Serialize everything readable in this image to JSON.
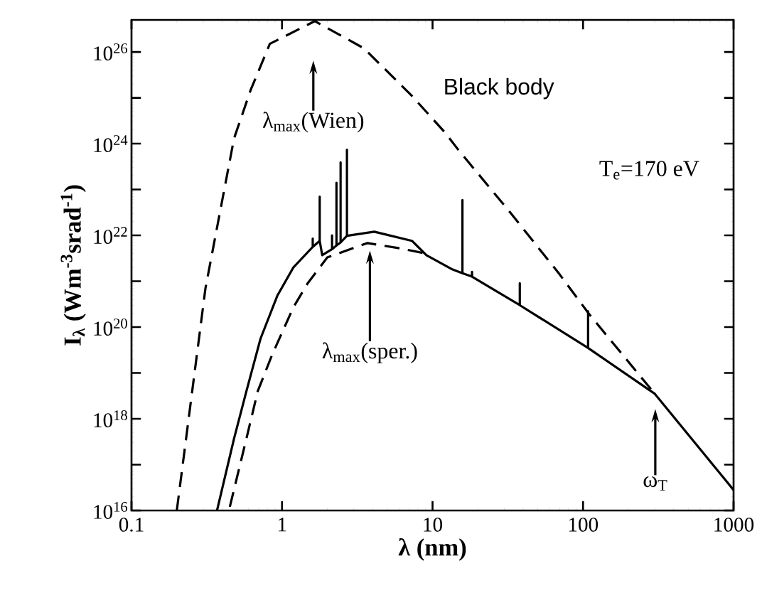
{
  "chart_data": {
    "type": "line",
    "xlabel": "λ  (nm)",
    "ylabel": "I$_{λ}$ (Wm$^{-3}$srad$^{-1}$)",
    "log": "xy",
    "grid": false,
    "marker": "none",
    "xlim": [
      0.1,
      1000
    ],
    "ylim": [
      1e+16,
      5e+26
    ],
    "xticks": [
      0.1,
      1,
      10,
      100,
      1000
    ],
    "yticks": [
      {
        "value": 1e+16,
        "label": "10$^{16}$"
      },
      {
        "value": 1e+17,
        "label": null
      },
      {
        "value": 1e+18,
        "label": "10$^{18}$"
      },
      {
        "value": 1e+19,
        "label": null
      },
      {
        "value": 1e+20,
        "label": "10$^{20}$"
      },
      {
        "value": 1e+21,
        "label": null
      },
      {
        "value": 1e+22,
        "label": "10$^{22}$"
      },
      {
        "value": 1e+23,
        "label": null
      },
      {
        "value": 1e+24,
        "label": "10$^{24}$"
      },
      {
        "value": 1e+25,
        "label": null
      },
      {
        "value": 1e+26,
        "label": "10$^{26}$"
      }
    ],
    "series": [
      {
        "color": "#000000",
        "line_style": "dashed",
        "x": [
          0.2,
          0.31,
          0.48,
          0.62,
          0.83,
          1.65,
          3.5,
          7.3,
          12,
          15,
          32,
          70,
          110,
          290
        ],
        "values": [
          1e+16,
          7e+20,
          1.3e+24,
          1.5e+25,
          1.5e+26,
          4.7e+26,
          1.2e+26,
          1.1e+25,
          1.8e+24,
          7e+23,
          3.5e+22,
          1.4e+21,
          1.9e+20,
          4e+18
        ]
      },
      {
        "color": "#000000",
        "line_style": "dashed",
        "x": [
          0.45,
          0.58,
          0.69,
          0.86,
          1.19,
          1.48,
          2.0,
          3.7,
          6.1,
          8.8
        ],
        "values": [
          1.2e+16,
          3.7e+17,
          4e+18,
          2.5e+19,
          2.7e+20,
          9e+20,
          3.3e+21,
          6.8e+21,
          5.2e+21,
          4.1e+21
        ]
      },
      {
        "color": "#000000",
        "line_style": "solid",
        "x": [
          0.37,
          0.48,
          0.58,
          0.72,
          0.93,
          1.19,
          1.6,
          1.6,
          1.6,
          1.78,
          1.78,
          1.78,
          1.85,
          2.15,
          2.15,
          2.15,
          2.3,
          2.3,
          2.3,
          2.45,
          2.45,
          2.45,
          2.7,
          2.7,
          2.7,
          4.1,
          7.3,
          9.1,
          13.6,
          15.8,
          15.8,
          15.8,
          18.3,
          18.3,
          18.3,
          38,
          38,
          38,
          108,
          108,
          108,
          300,
          1000
        ],
        "values": [
          1e+16,
          3.7e+17,
          4e+18,
          5.6e+19,
          4.8e+20,
          2e+21,
          5.6e+21,
          8.5e+21,
          5.6e+21,
          7.6e+21,
          7e+22,
          7.6e+21,
          3.7e+21,
          5e+21,
          1e+22,
          5e+21,
          6e+21,
          1.4e+23,
          6e+21,
          7e+21,
          3.9e+23,
          7e+21,
          9.8e+21,
          7.4e+23,
          9.8e+21,
          1.2e+22,
          7.6e+21,
          3.7e+21,
          1.8e+21,
          1.5e+21,
          5.9e+22,
          1.5e+21,
          1.26e+21,
          1.6e+21,
          1.26e+21,
          3e+20,
          9e+20,
          3e+20,
          3.5e+19,
          2.2e+20,
          3.5e+19,
          3.5e+18,
          2.8e+16
        ]
      }
    ],
    "annotations": [
      "λ$_{max}$(Wien)",
      "λ$_{max}$(sper.)",
      "ω$_{T}$",
      "Black body",
      "T$_{e}$=170 eV"
    ]
  }
}
